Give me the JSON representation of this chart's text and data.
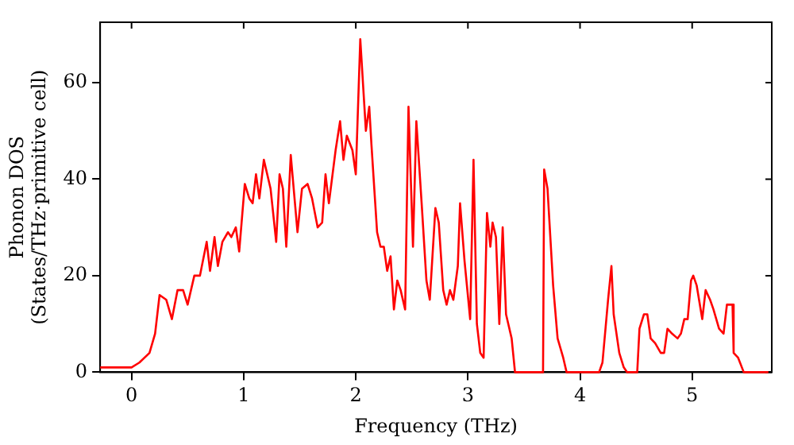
{
  "chart_data": {
    "type": "line",
    "xlabel": "Frequency (THz)",
    "ylabel": "Phonon DOS\n(States/THz·primitive cell)",
    "xlim": [
      -0.28,
      5.71
    ],
    "ylim": [
      0,
      72.5
    ],
    "xticks": [
      0,
      1,
      2,
      3,
      4,
      5
    ],
    "yticks": [
      0,
      20,
      40,
      60
    ],
    "grid": false,
    "legend": false,
    "marker": "none",
    "line_style": "solid",
    "series": [
      {
        "color": "#ff0000",
        "x": [
          -0.28,
          -0.21,
          0,
          0.07,
          0.16,
          0.21,
          0.25,
          0.31,
          0.36,
          0.41,
          0.46,
          0.5,
          0.56,
          0.61,
          0.67,
          0.7,
          0.74,
          0.77,
          0.81,
          0.86,
          0.89,
          0.93,
          0.96,
          1.01,
          1.05,
          1.08,
          1.11,
          1.14,
          1.18,
          1.24,
          1.29,
          1.32,
          1.35,
          1.38,
          1.42,
          1.48,
          1.52,
          1.57,
          1.61,
          1.66,
          1.7,
          1.73,
          1.76,
          1.82,
          1.86,
          1.89,
          1.92,
          1.97,
          2.0,
          2.04,
          2.09,
          2.12,
          2.14,
          2.19,
          2.22,
          2.25,
          2.28,
          2.31,
          2.34,
          2.37,
          2.4,
          2.44,
          2.47,
          2.51,
          2.54,
          2.59,
          2.63,
          2.66,
          2.71,
          2.74,
          2.78,
          2.81,
          2.84,
          2.87,
          2.91,
          2.93,
          2.97,
          3.02,
          3.05,
          3.08,
          3.11,
          3.14,
          3.17,
          3.2,
          3.22,
          3.25,
          3.28,
          3.31,
          3.34,
          3.39,
          3.42,
          3.67,
          3.68,
          3.71,
          3.76,
          3.8,
          3.85,
          3.88,
          4.17,
          4.2,
          4.25,
          4.28,
          4.3,
          4.35,
          4.39,
          4.42,
          4.51,
          4.53,
          4.57,
          4.6,
          4.63,
          4.67,
          4.72,
          4.75,
          4.78,
          4.82,
          4.87,
          4.9,
          4.93,
          4.96,
          4.99,
          5.01,
          5.04,
          5.09,
          5.12,
          5.16,
          5.19,
          5.24,
          5.28,
          5.31,
          5.36,
          5.37,
          5.41,
          5.46,
          5.68
        ],
        "values": [
          1,
          1,
          1,
          2,
          4,
          8,
          16,
          15,
          11,
          17,
          17,
          14,
          20,
          20,
          27,
          21,
          28,
          22,
          27,
          29,
          28,
          30,
          25,
          39,
          36,
          35,
          41,
          36,
          44,
          38,
          27,
          41,
          38,
          26,
          45,
          29,
          38,
          39,
          36,
          30,
          31,
          41,
          35,
          46,
          52,
          44,
          49,
          46,
          41,
          69,
          50,
          55,
          47,
          29,
          26,
          26,
          21,
          24,
          13,
          19,
          17,
          13,
          55,
          26,
          52,
          34,
          19,
          15,
          34,
          31,
          17,
          14,
          17,
          15,
          22,
          35,
          23,
          11,
          44,
          10,
          4,
          3,
          33,
          26,
          31,
          28,
          10,
          30,
          12,
          7,
          0,
          0,
          42,
          38,
          18,
          7,
          3,
          0,
          0,
          2,
          15,
          22,
          12,
          4,
          1,
          0,
          0,
          9,
          12,
          12,
          7,
          6,
          4,
          4,
          9,
          8,
          7,
          8,
          11,
          11,
          19,
          20,
          18,
          11,
          17,
          15,
          13,
          9,
          8,
          14,
          14,
          4,
          3,
          0,
          0
        ]
      }
    ]
  }
}
